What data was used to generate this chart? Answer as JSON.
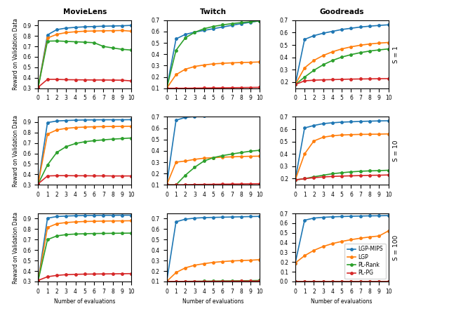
{
  "x": [
    0,
    1,
    2,
    3,
    4,
    5,
    6,
    7,
    8,
    9,
    10
  ],
  "col_titles": [
    "MovieLens",
    "Twitch",
    "Goodreads"
  ],
  "row_labels": [
    "S = 1",
    "S = 10",
    "S = 100"
  ],
  "xlabel": "Number of evaluations",
  "ylabel": "Reward on Validation Data",
  "legend_labels": [
    "LGP-MIPS",
    "LGP",
    "PL-Rank",
    "PL-PG"
  ],
  "colors": [
    "#1f77b4",
    "#ff7f0e",
    "#2ca02c",
    "#d62728"
  ],
  "data": {
    "MovieLens": {
      "S1": {
        "LGP-MIPS": [
          0.31,
          0.81,
          0.86,
          0.875,
          0.882,
          0.887,
          0.89,
          0.893,
          0.895,
          0.897,
          0.901
        ],
        "LGP": [
          0.31,
          0.78,
          0.815,
          0.832,
          0.84,
          0.845,
          0.847,
          0.849,
          0.85,
          0.852,
          0.845
        ],
        "PL-Rank": [
          0.31,
          0.75,
          0.752,
          0.748,
          0.744,
          0.74,
          0.735,
          0.7,
          0.685,
          0.672,
          0.665
        ],
        "PL-PG": [
          0.31,
          0.385,
          0.385,
          0.382,
          0.381,
          0.38,
          0.379,
          0.379,
          0.378,
          0.377,
          0.37
        ]
      },
      "S10": {
        "LGP-MIPS": [
          0.31,
          0.895,
          0.91,
          0.915,
          0.918,
          0.92,
          0.921,
          0.922,
          0.922,
          0.922,
          0.923
        ],
        "LGP": [
          0.31,
          0.785,
          0.825,
          0.84,
          0.848,
          0.852,
          0.855,
          0.857,
          0.858,
          0.859,
          0.86
        ],
        "PL-Rank": [
          0.31,
          0.49,
          0.61,
          0.665,
          0.695,
          0.712,
          0.722,
          0.73,
          0.737,
          0.742,
          0.748
        ],
        "PL-PG": [
          0.31,
          0.385,
          0.388,
          0.388,
          0.387,
          0.387,
          0.386,
          0.386,
          0.385,
          0.385,
          0.385
        ]
      },
      "S100": {
        "LGP-MIPS": [
          0.31,
          0.905,
          0.92,
          0.925,
          0.928,
          0.93,
          0.931,
          0.932,
          0.932,
          0.933,
          0.933
        ],
        "LGP": [
          0.31,
          0.815,
          0.852,
          0.863,
          0.869,
          0.873,
          0.875,
          0.877,
          0.878,
          0.879,
          0.88
        ],
        "PL-Rank": [
          0.31,
          0.7,
          0.735,
          0.748,
          0.753,
          0.756,
          0.758,
          0.759,
          0.76,
          0.761,
          0.762
        ],
        "PL-PG": [
          0.31,
          0.345,
          0.358,
          0.365,
          0.368,
          0.37,
          0.371,
          0.372,
          0.373,
          0.374,
          0.375
        ]
      }
    },
    "Twitch": {
      "S1": {
        "LGP-MIPS": [
          0.1,
          0.535,
          0.575,
          0.595,
          0.61,
          0.625,
          0.64,
          0.655,
          0.67,
          0.682,
          0.695
        ],
        "LGP": [
          0.1,
          0.22,
          0.268,
          0.292,
          0.305,
          0.315,
          0.32,
          0.324,
          0.327,
          0.329,
          0.332
        ],
        "PL-Rank": [
          0.1,
          0.435,
          0.545,
          0.593,
          0.625,
          0.645,
          0.659,
          0.67,
          0.679,
          0.686,
          0.695
        ],
        "PL-PG": [
          0.1,
          0.1,
          0.1,
          0.101,
          0.102,
          0.103,
          0.104,
          0.105,
          0.106,
          0.107,
          0.108
        ]
      },
      "S10": {
        "LGP-MIPS": [
          0.1,
          0.67,
          0.695,
          0.703,
          0.708,
          0.712,
          0.715,
          0.717,
          0.719,
          0.721,
          0.722
        ],
        "LGP": [
          0.1,
          0.3,
          0.31,
          0.325,
          0.335,
          0.34,
          0.344,
          0.347,
          0.35,
          0.352,
          0.353
        ],
        "PL-Rank": [
          0.1,
          0.1,
          0.185,
          0.255,
          0.31,
          0.34,
          0.358,
          0.372,
          0.385,
          0.397,
          0.405
        ],
        "PL-PG": [
          0.1,
          0.1,
          0.101,
          0.103,
          0.104,
          0.105,
          0.106,
          0.107,
          0.108,
          0.109,
          0.11
        ]
      },
      "S100": {
        "LGP-MIPS": [
          0.1,
          0.67,
          0.695,
          0.705,
          0.71,
          0.712,
          0.714,
          0.716,
          0.718,
          0.72,
          0.722
        ],
        "LGP": [
          0.1,
          0.185,
          0.23,
          0.255,
          0.27,
          0.282,
          0.29,
          0.296,
          0.3,
          0.303,
          0.308
        ],
        "PL-Rank": [
          0.1,
          0.1,
          0.101,
          0.102,
          0.103,
          0.104,
          0.105,
          0.106,
          0.107,
          0.108,
          0.11
        ],
        "PL-PG": [
          0.1,
          0.1,
          0.1,
          0.101,
          0.101,
          0.101,
          0.102,
          0.102,
          0.103,
          0.103,
          0.103
        ]
      }
    },
    "Goodreads": {
      "S1": {
        "LGP-MIPS": [
          0.18,
          0.545,
          0.575,
          0.595,
          0.61,
          0.625,
          0.635,
          0.645,
          0.652,
          0.658,
          0.663
        ],
        "LGP": [
          0.18,
          0.315,
          0.375,
          0.415,
          0.445,
          0.468,
          0.485,
          0.498,
          0.508,
          0.515,
          0.52
        ],
        "PL-Rank": [
          0.18,
          0.24,
          0.295,
          0.34,
          0.375,
          0.402,
          0.422,
          0.438,
          0.451,
          0.46,
          0.468
        ],
        "PL-PG": [
          0.18,
          0.21,
          0.215,
          0.218,
          0.22,
          0.222,
          0.224,
          0.225,
          0.226,
          0.227,
          0.228
        ]
      },
      "S10": {
        "LGP-MIPS": [
          0.19,
          0.61,
          0.63,
          0.645,
          0.652,
          0.657,
          0.66,
          0.663,
          0.665,
          0.667,
          0.668
        ],
        "LGP": [
          0.19,
          0.4,
          0.505,
          0.535,
          0.547,
          0.553,
          0.556,
          0.558,
          0.559,
          0.56,
          0.562
        ],
        "PL-Rank": [
          0.19,
          0.2,
          0.215,
          0.228,
          0.24,
          0.248,
          0.255,
          0.26,
          0.263,
          0.265,
          0.268
        ],
        "PL-PG": [
          0.19,
          0.2,
          0.208,
          0.214,
          0.218,
          0.221,
          0.223,
          0.225,
          0.227,
          0.228,
          0.23
        ]
      },
      "S100": {
        "LGP-MIPS": [
          0.19,
          0.63,
          0.652,
          0.66,
          0.665,
          0.668,
          0.671,
          0.673,
          0.675,
          0.676,
          0.678
        ],
        "LGP": [
          0.19,
          0.265,
          0.32,
          0.36,
          0.39,
          0.412,
          0.43,
          0.445,
          0.458,
          0.468,
          0.52
        ],
        "PL-Rank": [
          0.0,
          0.0,
          0.0,
          0.0,
          0.0,
          0.0,
          0.0,
          0.0,
          0.0,
          0.0,
          0.0
        ],
        "PL-PG": [
          0.0,
          0.0,
          0.0,
          0.0,
          0.0,
          0.0,
          0.0,
          0.0,
          0.0,
          0.0,
          0.0
        ]
      }
    }
  },
  "ylims": {
    "MovieLens": {
      "S1": [
        0.3,
        0.95
      ],
      "S10": [
        0.3,
        0.95
      ],
      "S100": [
        0.3,
        0.95
      ]
    },
    "Twitch": {
      "S1": [
        0.1,
        0.7
      ],
      "S10": [
        0.1,
        0.7
      ],
      "S100": [
        0.1,
        0.75
      ]
    },
    "Goodreads": {
      "S1": [
        0.15,
        0.7
      ],
      "S10": [
        0.15,
        0.7
      ],
      "S100": [
        0.0,
        0.7
      ]
    }
  },
  "yticks": {
    "MovieLens": {
      "S1": [
        0.3,
        0.4,
        0.5,
        0.6,
        0.7,
        0.8,
        0.9
      ],
      "S10": [
        0.3,
        0.4,
        0.5,
        0.6,
        0.7,
        0.8,
        0.9
      ],
      "S100": [
        0.3,
        0.4,
        0.5,
        0.6,
        0.7,
        0.8,
        0.9
      ]
    },
    "Twitch": {
      "S1": [
        0.1,
        0.2,
        0.3,
        0.4,
        0.5,
        0.6,
        0.7
      ],
      "S10": [
        0.1,
        0.2,
        0.3,
        0.4,
        0.5,
        0.6,
        0.7
      ],
      "S100": [
        0.1,
        0.2,
        0.3,
        0.4,
        0.5,
        0.6,
        0.7
      ]
    },
    "Goodreads": {
      "S1": [
        0.2,
        0.3,
        0.4,
        0.5,
        0.6,
        0.7
      ],
      "S10": [
        0.2,
        0.3,
        0.4,
        0.5,
        0.6,
        0.7
      ],
      "S100": [
        0.0,
        0.1,
        0.2,
        0.3,
        0.4,
        0.5,
        0.6,
        0.7
      ]
    }
  }
}
